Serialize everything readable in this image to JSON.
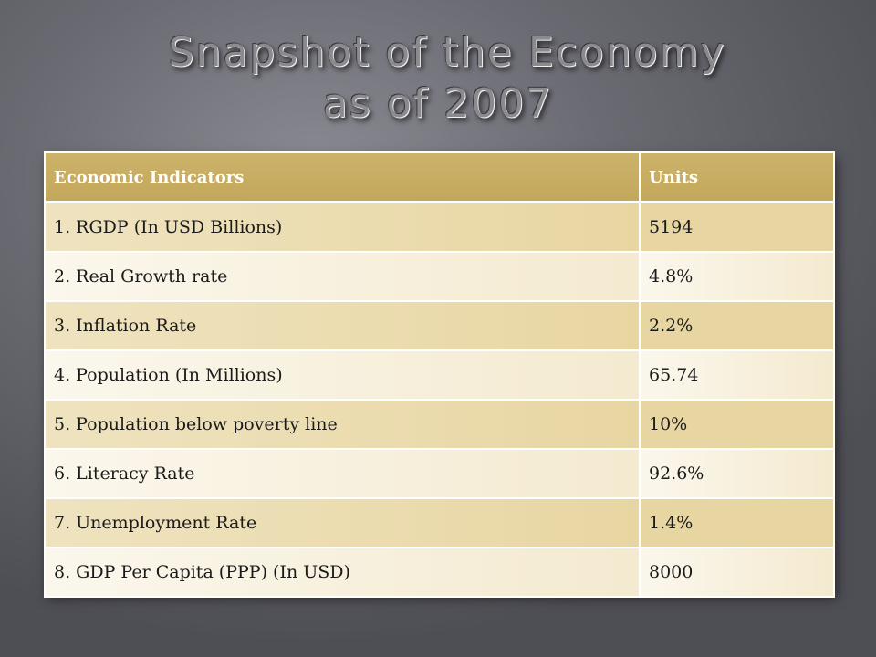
{
  "slide": {
    "title_line1": "Snapshot of the Economy",
    "title_line2": "as of 2007"
  },
  "table": {
    "headers": [
      "Economic Indicators",
      "Units"
    ],
    "rows": [
      {
        "indicator": "1. RGDP (In USD Billions)",
        "value": "5194"
      },
      {
        "indicator": "2. Real Growth rate",
        "value": "4.8%"
      },
      {
        "indicator": "3. Inflation Rate",
        "value": "2.2%"
      },
      {
        "indicator": "4. Population (In Millions)",
        "value": "65.74"
      },
      {
        "indicator": "5. Population below poverty line",
        "value": "10%"
      },
      {
        "indicator": "6. Literacy Rate",
        "value": "92.6%"
      },
      {
        "indicator": "7. Unemployment Rate",
        "value": "1.4%"
      },
      {
        "indicator": "8. GDP Per Capita (PPP) (In USD)",
        "value": "8000"
      }
    ]
  },
  "colors": {
    "header_gold": "#c6ab60",
    "row_band": "#e8d6a2",
    "row_light": "#f7f0dc",
    "background": "#6a6a72"
  }
}
